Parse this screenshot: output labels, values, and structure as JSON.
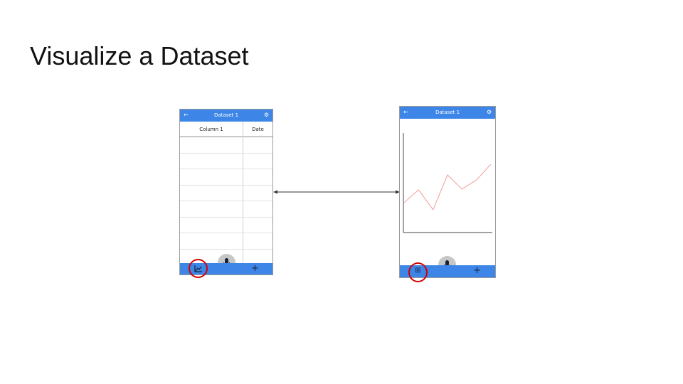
{
  "slide": {
    "title": "Visualize a Dataset"
  },
  "left_phone": {
    "header": {
      "back_icon": "←",
      "title": "Dataset 1",
      "gear_icon": "⚙"
    },
    "table": {
      "columns": [
        "Column 1",
        "Date"
      ],
      "row_count": 8
    },
    "bottom_bar": {
      "chart_icon": "📈",
      "plus": "+"
    }
  },
  "right_phone": {
    "header": {
      "back_icon": "←",
      "title": "Dataset 1",
      "gear_icon": "⚙"
    },
    "bottom_bar": {
      "table_icon": "⊞",
      "plus": "+"
    },
    "chart_data": {
      "type": "line",
      "x": [
        0,
        1,
        2,
        3,
        4,
        5,
        6
      ],
      "series": [
        {
          "values": [
            4.2,
            6.0,
            3.2,
            8.1,
            6.1,
            7.4,
            9.6
          ],
          "color": "#f08080"
        }
      ],
      "title": "",
      "xlabel": "",
      "ylabel": "",
      "ylim": [
        0,
        14
      ],
      "grid": false
    }
  },
  "connector": {
    "type": "double-arrow"
  },
  "highlights": {
    "color": "#d10000"
  },
  "colors": {
    "header_blue": "#3d86e8",
    "line_pink": "#f08080"
  }
}
